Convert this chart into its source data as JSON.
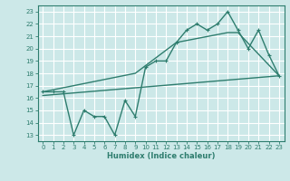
{
  "xlabel": "Humidex (Indice chaleur)",
  "bg_color": "#cce8e8",
  "line_color": "#2e7d6e",
  "grid_color": "#ffffff",
  "xlim": [
    -0.5,
    23.5
  ],
  "ylim": [
    12.5,
    23.5
  ],
  "xticks": [
    0,
    1,
    2,
    3,
    4,
    5,
    6,
    7,
    8,
    9,
    10,
    11,
    12,
    13,
    14,
    15,
    16,
    17,
    18,
    19,
    20,
    21,
    22,
    23
  ],
  "yticks": [
    13,
    14,
    15,
    16,
    17,
    18,
    19,
    20,
    21,
    22,
    23
  ],
  "series1_x": [
    0,
    1,
    2,
    3,
    4,
    5,
    6,
    7,
    8,
    9,
    10,
    11,
    12,
    13,
    14,
    15,
    16,
    17,
    18,
    19,
    20,
    21,
    22,
    23
  ],
  "series1_y": [
    16.5,
    16.5,
    16.5,
    13.0,
    15.0,
    14.5,
    14.5,
    13.0,
    15.8,
    14.5,
    18.5,
    19.0,
    19.0,
    20.5,
    21.5,
    22.0,
    21.5,
    22.0,
    23.0,
    21.5,
    20.0,
    21.5,
    19.5,
    17.8
  ],
  "series2_x": [
    0,
    23
  ],
  "series2_y": [
    16.2,
    17.8
  ],
  "series3_x": [
    0,
    9,
    13,
    18,
    19,
    23
  ],
  "series3_y": [
    16.5,
    18.0,
    20.5,
    21.3,
    21.3,
    17.8
  ],
  "linewidth": 1.0,
  "marker_size": 2.5
}
